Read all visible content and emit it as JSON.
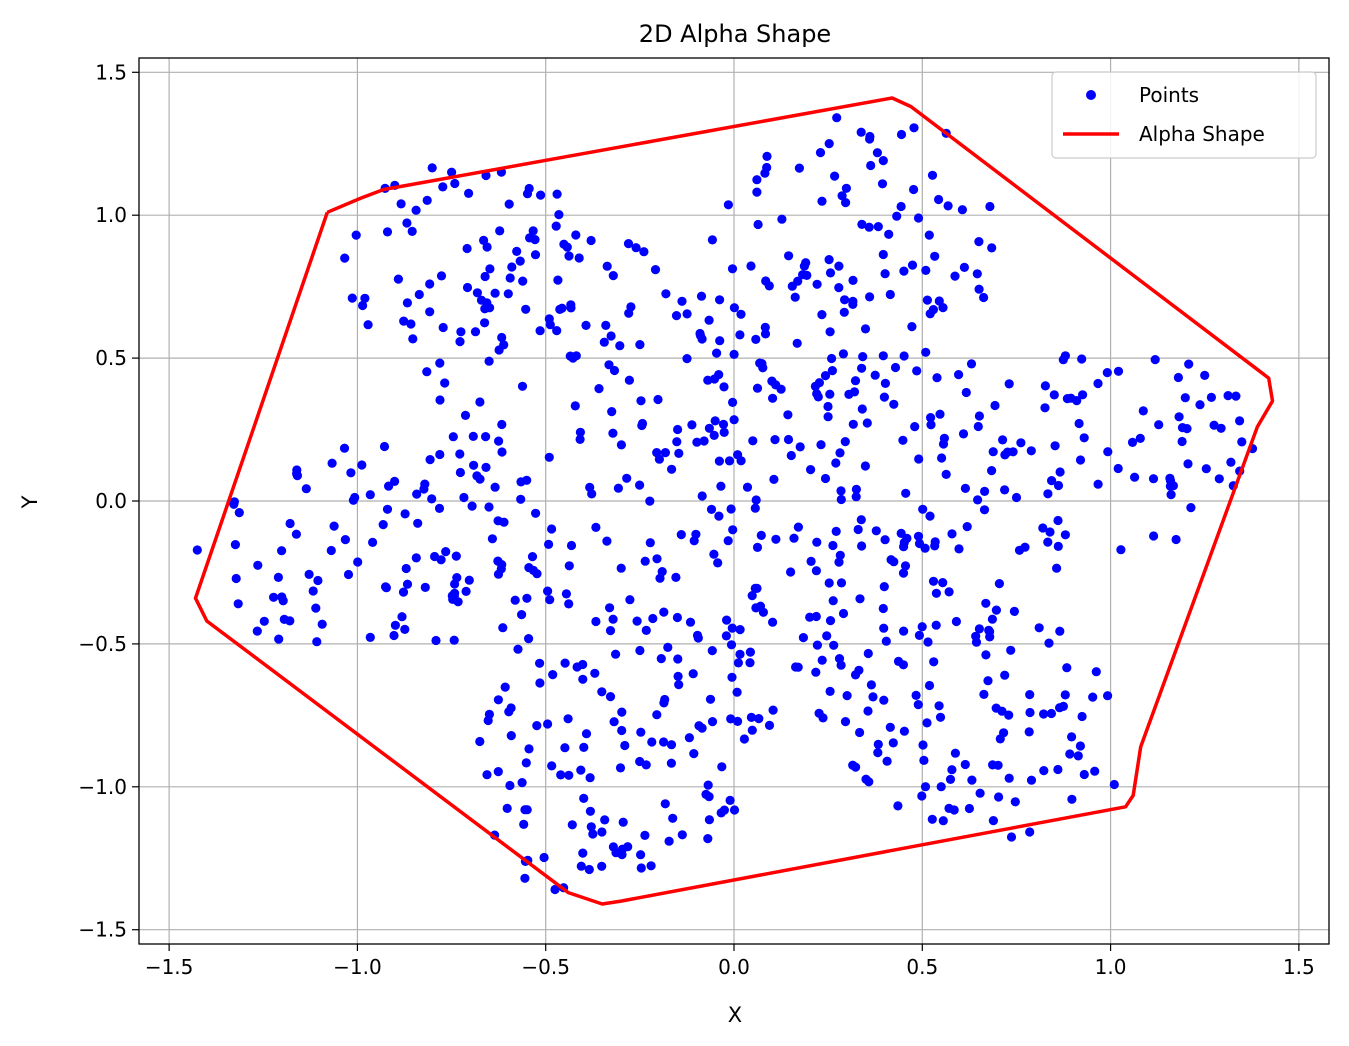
{
  "chart_data": {
    "type": "scatter",
    "title": "2D Alpha Shape",
    "xlabel": "X",
    "ylabel": "Y",
    "xlim": [
      -1.58,
      1.58
    ],
    "ylim": [
      -1.55,
      1.55
    ],
    "xticks": [
      -1.5,
      -1.0,
      -0.5,
      0.0,
      0.5,
      1.0,
      1.5
    ],
    "yticks": [
      -1.5,
      -1.0,
      -0.5,
      0.0,
      0.5,
      1.0,
      1.5
    ],
    "xtick_labels": [
      "−1.5",
      "−1.0",
      "−0.5",
      "0.0",
      "0.5",
      "1.0",
      "1.5"
    ],
    "ytick_labels": [
      "−1.5",
      "−1.0",
      "−0.5",
      "0.0",
      "0.5",
      "1.0",
      "1.5"
    ],
    "grid": true,
    "legend_position": "top-right",
    "series": [
      {
        "name": "Points",
        "kind": "scatter",
        "color": "#0000ff",
        "generator": {
          "description": "six-petal flower point cloud (approximate, about 900 points)",
          "count": 900,
          "petals": 6,
          "rotation_deg": 10,
          "max_radius": 1.45
        }
      },
      {
        "name": "Alpha Shape",
        "kind": "line",
        "color": "#ff0000",
        "x": [
          -1.08,
          -0.99,
          -0.93,
          0.42,
          0.47,
          1.38,
          1.42,
          1.43,
          1.39,
          1.08,
          1.06,
          1.04,
          -0.3,
          -0.35,
          -0.44,
          -1.4,
          -1.43,
          -1.08
        ],
        "y": [
          1.01,
          1.06,
          1.09,
          1.41,
          1.38,
          0.47,
          0.43,
          0.35,
          0.26,
          -0.86,
          -1.03,
          -1.07,
          -1.4,
          -1.41,
          -1.37,
          -0.42,
          -0.34,
          1.01
        ]
      }
    ]
  }
}
